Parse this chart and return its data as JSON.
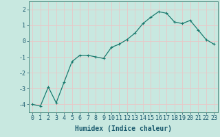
{
  "x": [
    0,
    1,
    2,
    3,
    4,
    5,
    6,
    7,
    8,
    9,
    10,
    11,
    12,
    13,
    14,
    15,
    16,
    17,
    18,
    19,
    20,
    21,
    22,
    23
  ],
  "y": [
    -4.0,
    -4.1,
    -2.9,
    -3.9,
    -2.6,
    -1.3,
    -0.9,
    -0.9,
    -1.0,
    -1.1,
    -0.4,
    -0.2,
    0.1,
    0.5,
    1.1,
    1.5,
    1.85,
    1.75,
    1.2,
    1.1,
    1.3,
    0.7,
    0.1,
    -0.2
  ],
  "xlabel": "Humidex (Indice chaleur)",
  "ylim": [
    -4.5,
    2.5
  ],
  "xlim": [
    -0.5,
    23.5
  ],
  "yticks": [
    -4,
    -3,
    -2,
    -1,
    0,
    1,
    2
  ],
  "xticks": [
    0,
    1,
    2,
    3,
    4,
    5,
    6,
    7,
    8,
    9,
    10,
    11,
    12,
    13,
    14,
    15,
    16,
    17,
    18,
    19,
    20,
    21,
    22,
    23
  ],
  "line_color": "#1a7a6e",
  "marker": "+",
  "marker_size": 3,
  "bg_color": "#c8e8e0",
  "grid_color": "#e8c8c8",
  "xlabel_fontsize": 7,
  "tick_fontsize": 6,
  "linewidth": 0.9
}
